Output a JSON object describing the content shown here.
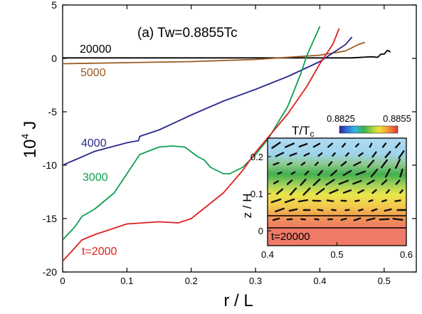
{
  "chart_data": [
    {
      "type": "line",
      "title": "(a)  Tw=0.8855Tc",
      "xlabel": "r / L",
      "ylabel_base": "10",
      "ylabel_exp": "4",
      "ylabel_var": "J",
      "xlim": [
        0,
        0.55
      ],
      "ylim": [
        -20,
        5
      ],
      "xticks": [
        0,
        0.1,
        0.2,
        0.3,
        0.4,
        0.5
      ],
      "xtick_labels": [
        "0",
        "0.1",
        "0.2",
        "0.3",
        "0.4",
        "0.5"
      ],
      "yticks": [
        -20,
        -15,
        -10,
        -5,
        0,
        5
      ],
      "ytick_labels": [
        "-20",
        "-15",
        "-10",
        "-5",
        "0",
        "5"
      ],
      "series": [
        {
          "name": "20000",
          "color": "#000000",
          "x": [
            0,
            0.1,
            0.2,
            0.3,
            0.4,
            0.45,
            0.48,
            0.49,
            0.495,
            0.5,
            0.505,
            0.51
          ],
          "y": [
            0.05,
            0.05,
            0.05,
            0.05,
            0.05,
            0.05,
            0.15,
            0.1,
            0.4,
            0.4,
            0.75,
            0.6
          ]
        },
        {
          "name": "5000",
          "color": "#9a5a22",
          "x": [
            0,
            0.1,
            0.2,
            0.3,
            0.4,
            0.44,
            0.46,
            0.47
          ],
          "y": [
            -0.5,
            -0.4,
            -0.3,
            -0.1,
            0.3,
            0.7,
            1.3,
            1.5
          ]
        },
        {
          "name": "4000",
          "color": "#2a2a8c",
          "x": [
            0,
            0.05,
            0.1,
            0.118,
            0.12,
            0.15,
            0.2,
            0.25,
            0.3,
            0.35,
            0.4,
            0.42,
            0.44,
            0.45
          ],
          "y": [
            -10,
            -8.7,
            -7.9,
            -7.7,
            -7.3,
            -6.7,
            -5.3,
            -4.0,
            -2.9,
            -1.7,
            -0.3,
            0.5,
            1.3,
            2.0
          ]
        },
        {
          "name": "3000",
          "color": "#10a050",
          "x": [
            0,
            0.02,
            0.03,
            0.05,
            0.08,
            0.1,
            0.12,
            0.15,
            0.17,
            0.19,
            0.21,
            0.22,
            0.23,
            0.25,
            0.26,
            0.28,
            0.3,
            0.32,
            0.35,
            0.37,
            0.38,
            0.4
          ],
          "y": [
            -17,
            -15.7,
            -14.8,
            -14.1,
            -12.6,
            -10.8,
            -9.0,
            -8.3,
            -8.2,
            -8.3,
            -9.2,
            -9.5,
            -10.2,
            -10.8,
            -10.8,
            -10.2,
            -9.0,
            -7.5,
            -4.5,
            -1.5,
            0.3,
            3.0
          ]
        },
        {
          "name": "t=2000",
          "color": "#e02020",
          "x": [
            0,
            0.03,
            0.05,
            0.1,
            0.15,
            0.18,
            0.2,
            0.25,
            0.28,
            0.3,
            0.35,
            0.38,
            0.4,
            0.42,
            0.43
          ],
          "y": [
            -19,
            -17,
            -16.5,
            -15.5,
            -15.3,
            -15.4,
            -15.0,
            -12.6,
            -10.5,
            -8.8,
            -5.2,
            -2.6,
            -0.5,
            1.3,
            2.8
          ]
        }
      ],
      "labels": [
        "20000",
        "5000",
        "4000",
        "3000",
        "t=2000"
      ]
    },
    {
      "type": "heatmap",
      "colorbar_title": "T/T",
      "colorbar_title_sub": "c",
      "colorbar_min_label": "0.8825",
      "colorbar_max_label": "0.8855",
      "colorbar_range": [
        0.8825,
        0.8855
      ],
      "xlim": [
        0.4,
        0.6
      ],
      "ylim": [
        -0.04,
        0.25
      ],
      "xtick_labels": [
        "0.4",
        "0.5",
        "0.6"
      ],
      "ytick_labels": [
        "0",
        "0.1",
        "0.2"
      ],
      "ylabel": "z / H",
      "annotation": "t=20000"
    }
  ]
}
